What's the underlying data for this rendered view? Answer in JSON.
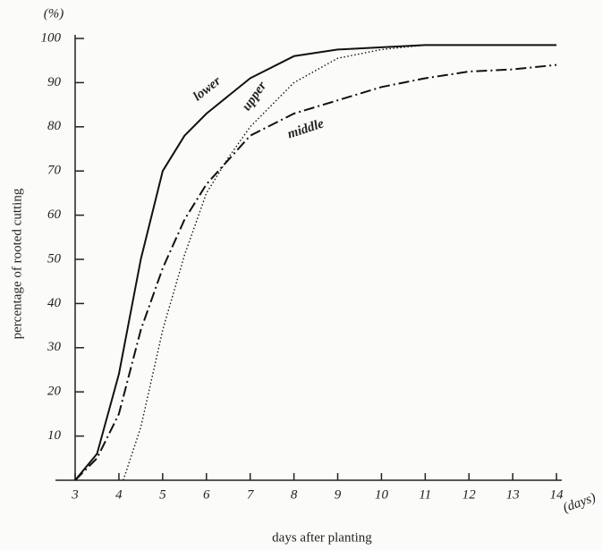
{
  "chart_data": {
    "type": "line",
    "x_label": "days after planting",
    "y_label": "percentage of rooted cutting",
    "x_unit": "(days)",
    "y_unit": "(%)",
    "xlim": [
      2.55,
      14.12
    ],
    "ylim": [
      0,
      100
    ],
    "xticks": [
      3,
      4,
      5,
      6,
      7,
      8,
      9,
      10,
      11,
      12,
      13,
      14
    ],
    "yticks": [
      10,
      20,
      30,
      40,
      50,
      60,
      70,
      80,
      90,
      100
    ],
    "series": [
      {
        "name": "lower",
        "color": "#111111",
        "line_style": "solid",
        "x": [
          3,
          3.5,
          4,
          4.5,
          5,
          5.5,
          6,
          7,
          8,
          9,
          10,
          11,
          12,
          13,
          14
        ],
        "values": [
          0,
          6,
          24,
          50,
          70,
          78,
          83,
          91,
          96,
          97.5,
          98,
          98.5,
          98.5,
          98.5,
          98.5
        ]
      },
      {
        "name": "upper",
        "color": "#111111",
        "line_style": "dotted",
        "x": [
          4.1,
          4.5,
          5,
          5.5,
          6,
          6.5,
          7,
          8,
          9,
          10,
          11,
          12,
          13,
          14
        ],
        "values": [
          0,
          12,
          34,
          51,
          65,
          73,
          80,
          90,
          95.5,
          97.5,
          98.5,
          98.5,
          98.5,
          98.5
        ]
      },
      {
        "name": "middle",
        "color": "#111111",
        "line_style": "dashdot",
        "x": [
          3,
          3.5,
          4,
          4.5,
          5,
          5.5,
          6,
          7,
          8,
          9,
          10,
          11,
          12,
          13,
          14
        ],
        "values": [
          0,
          5,
          15,
          34,
          48,
          59,
          67,
          78,
          83,
          86,
          89,
          91,
          92.5,
          93,
          94
        ]
      }
    ]
  }
}
